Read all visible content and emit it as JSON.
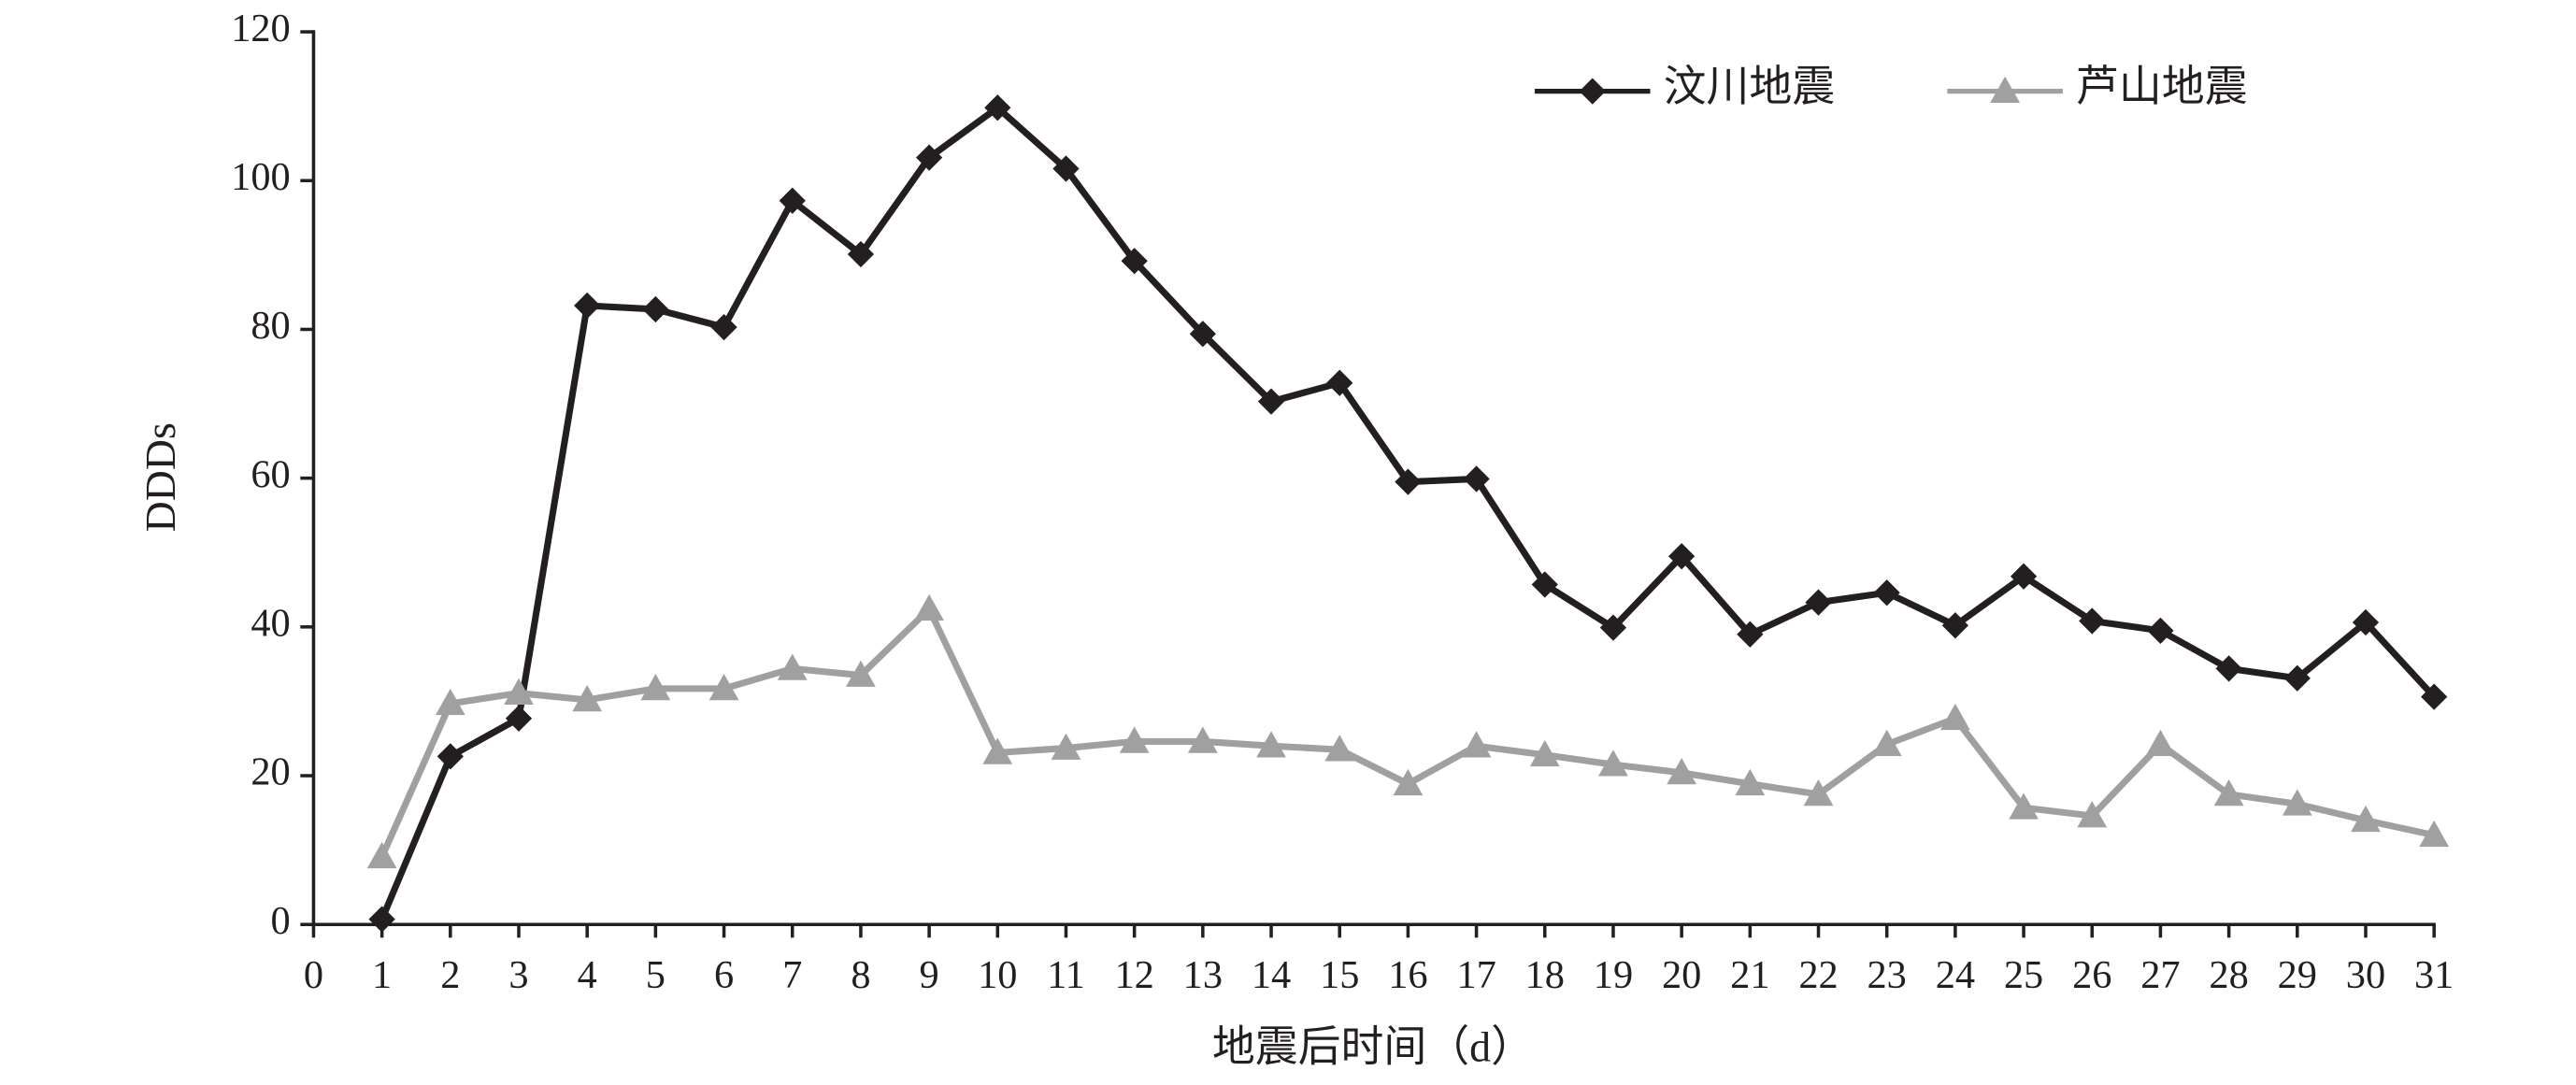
{
  "chart_data": {
    "type": "line",
    "xlabel": "地震后时间（d）",
    "ylabel": "DDDs",
    "x": [
      1,
      2,
      3,
      4,
      5,
      6,
      7,
      8,
      9,
      10,
      11,
      12,
      13,
      14,
      15,
      16,
      17,
      18,
      19,
      20,
      21,
      22,
      23,
      24,
      25,
      26,
      27,
      28,
      29,
      30,
      31
    ],
    "xlim": [
      0,
      31
    ],
    "xticks": [
      0,
      1,
      2,
      3,
      4,
      5,
      6,
      7,
      8,
      9,
      10,
      11,
      12,
      13,
      14,
      15,
      16,
      17,
      18,
      19,
      20,
      21,
      22,
      23,
      24,
      25,
      26,
      27,
      28,
      29,
      30,
      31
    ],
    "ylim": [
      0,
      120
    ],
    "yticks": [
      0,
      20,
      40,
      60,
      80,
      100,
      120
    ],
    "grid": false,
    "legend": "upper right",
    "series": [
      {
        "name": "汶川地震",
        "color": "#231f20",
        "marker": "diamond",
        "values": [
          0.7,
          22.6,
          27.7,
          83.2,
          82.7,
          80.3,
          97.3,
          90.1,
          103.1,
          109.8,
          101.6,
          89.2,
          79.4,
          70.3,
          72.8,
          59.5,
          59.9,
          45.7,
          39.9,
          49.5,
          39.0,
          43.3,
          44.6,
          40.2,
          46.8,
          40.8,
          39.5,
          34.4,
          33.1,
          40.6,
          30.6
        ]
      },
      {
        "name": "芦山地震",
        "color": "#a0a0a0",
        "marker": "triangle",
        "values": [
          9.1,
          29.7,
          31.1,
          30.2,
          31.7,
          31.7,
          34.4,
          33.5,
          42.4,
          23.1,
          23.7,
          24.6,
          24.6,
          24.0,
          23.5,
          18.9,
          24.0,
          22.8,
          21.5,
          20.4,
          18.9,
          17.5,
          24.2,
          27.7,
          15.7,
          14.6,
          24.2,
          17.5,
          16.2,
          14.0,
          12.0
        ]
      }
    ]
  }
}
